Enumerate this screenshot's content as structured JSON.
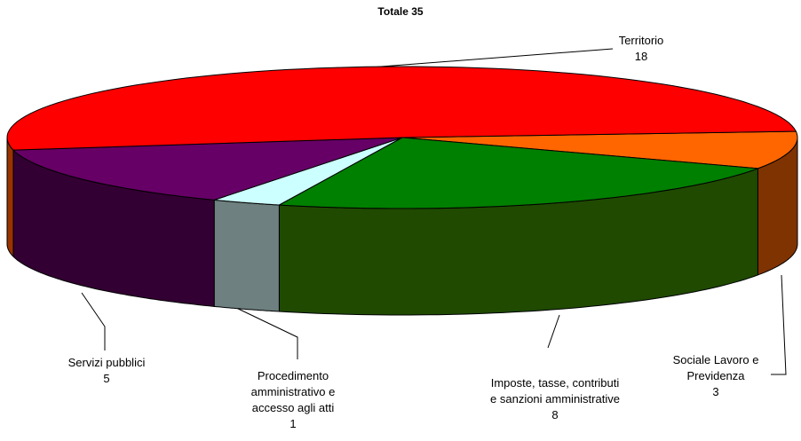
{
  "chart_data": {
    "type": "pie3d",
    "subtitle": "Totale 35",
    "categories": [
      "Sociale Lavoro e Previdenza",
      "Imposte, tasse, contributi e sanzioni amministrative",
      "Procedimento amministrativo e accesso agli atti",
      "Servizi pubblici",
      "Territorio"
    ],
    "values": [
      3,
      8,
      1,
      5,
      18
    ],
    "colors": [
      "#ff6600",
      "#008000",
      "#ccffff",
      "#660066",
      "#ff0000"
    ],
    "side_colors": [
      "#7f3300",
      "#1f4a00",
      "#6e8080",
      "#330033",
      "#993300"
    ]
  }
}
